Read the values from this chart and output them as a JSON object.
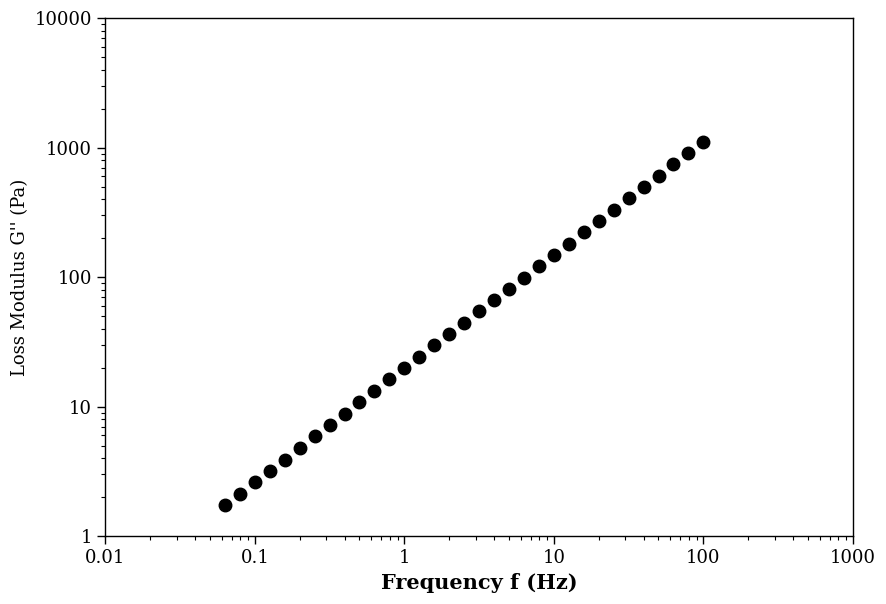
{
  "title": "",
  "xlabel": "Frequency f (Hz)",
  "ylabel": "Loss Modulus G'' (Pa)",
  "xlim": [
    0.01,
    1000
  ],
  "ylim": [
    1,
    10000
  ],
  "background_color": "#ffffff",
  "xlabel_fontsize": 15,
  "ylabel_fontsize": 13,
  "tick_fontsize": 13,
  "marker": "o",
  "marker_color": "#000000",
  "marker_size": 9,
  "freq": [
    0.0631,
    0.0794,
    0.1,
    0.126,
    0.158,
    0.2,
    0.251,
    0.316,
    0.398,
    0.501,
    0.631,
    0.794,
    1.0,
    1.26,
    1.58,
    2.0,
    2.51,
    3.16,
    3.98,
    5.01,
    6.31,
    7.94,
    10.0,
    12.6,
    15.8,
    20.0,
    25.1,
    31.6,
    39.8,
    50.1,
    63.1,
    79.4,
    100.0
  ],
  "G_double_prime": [
    1.75,
    2.1,
    2.6,
    3.2,
    3.9,
    4.8,
    5.9,
    7.2,
    8.8,
    10.8,
    13.2,
    16.2,
    19.8,
    24.3,
    29.7,
    36.3,
    44.4,
    54.3,
    66.4,
    81.2,
    99.3,
    121.4,
    148.5,
    181.6,
    222.0,
    271.5,
    331.9,
    405.9,
    496.3,
    606.9,
    742.0,
    907.2,
    1109.0
  ],
  "G_double_prime_err_rel": 0.05
}
